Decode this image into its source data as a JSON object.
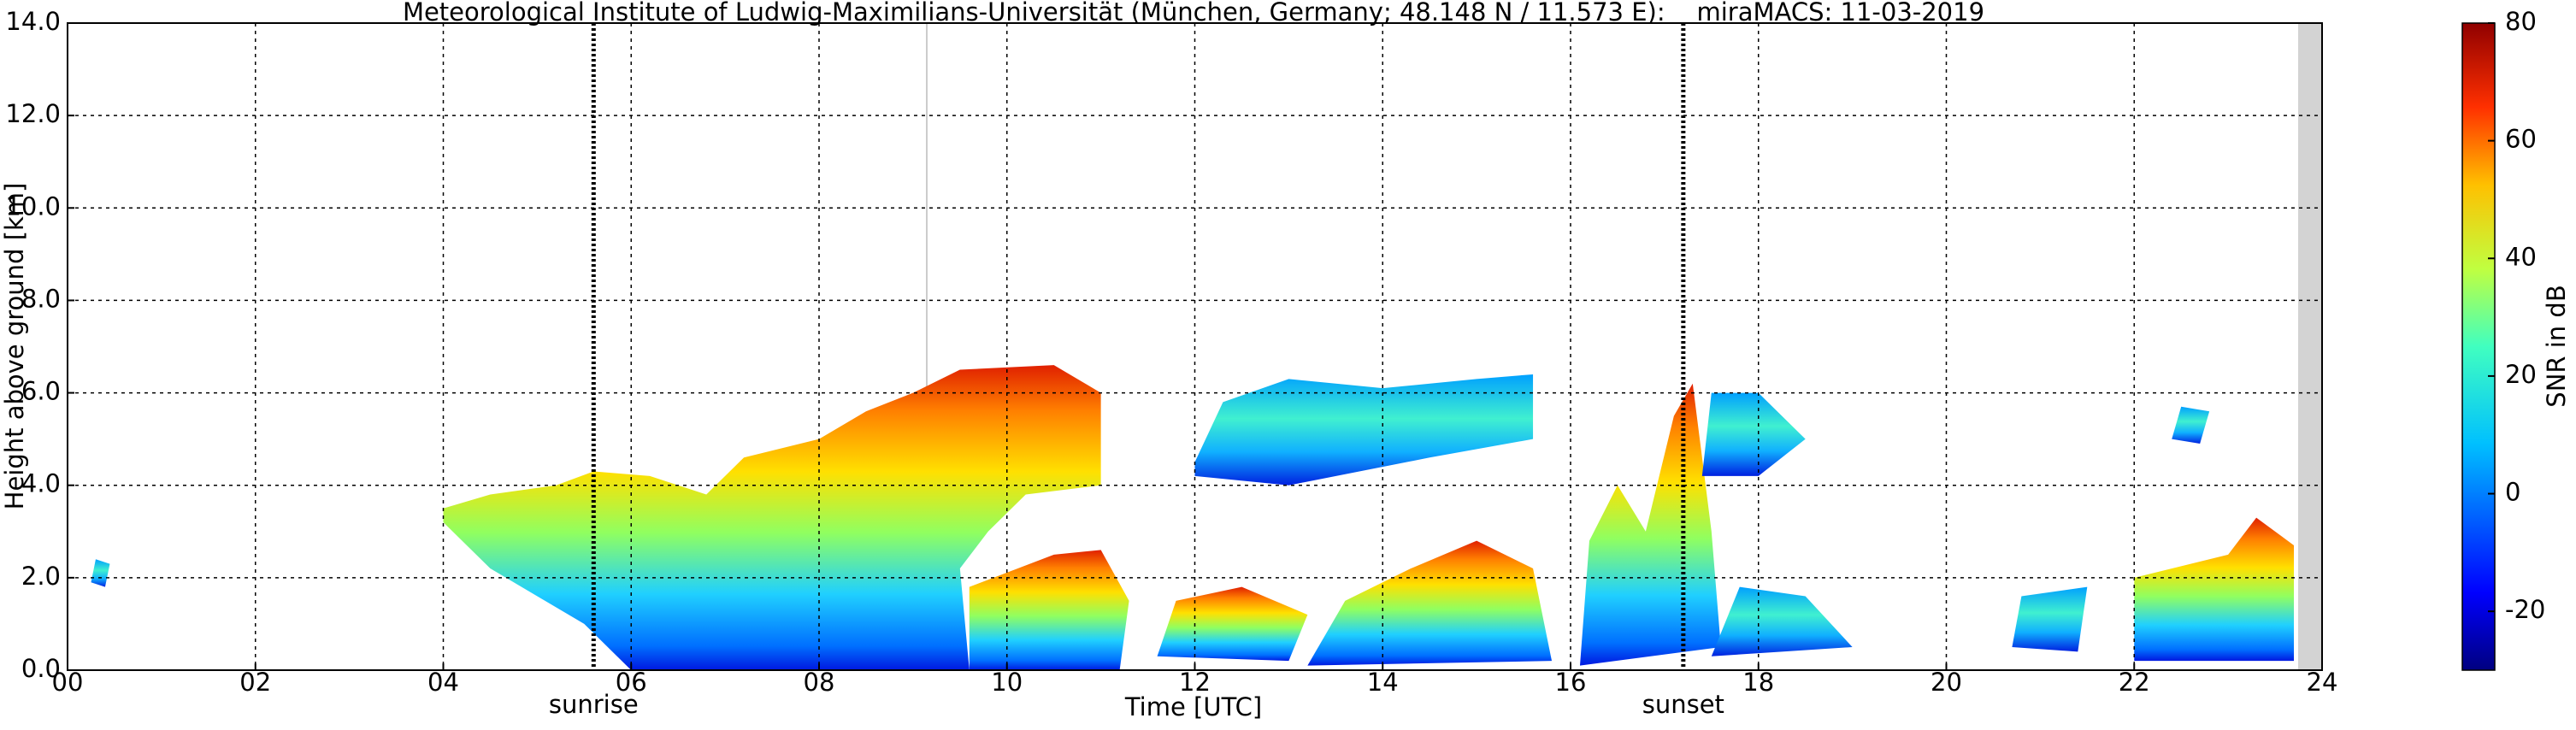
{
  "chart_data": {
    "type": "heatmap",
    "title": "Meteorological Institute of Ludwig-Maximilians-Universität (München, Germany; 48.148 N / 11.573 E):    miraMACS: 11-03-2019",
    "x_label": "Time [UTC]",
    "y_label": "Height above ground [km]",
    "xlim": [
      0,
      24
    ],
    "ylim": [
      0,
      14
    ],
    "xticks": [
      {
        "value": 0,
        "label": "00"
      },
      {
        "value": 2,
        "label": "02"
      },
      {
        "value": 4,
        "label": "04"
      },
      {
        "value": 6,
        "label": "06"
      },
      {
        "value": 8,
        "label": "08"
      },
      {
        "value": 10,
        "label": "10"
      },
      {
        "value": 12,
        "label": "12"
      },
      {
        "value": 14,
        "label": "14"
      },
      {
        "value": 16,
        "label": "16"
      },
      {
        "value": 18,
        "label": "18"
      },
      {
        "value": 20,
        "label": "20"
      },
      {
        "value": 22,
        "label": "22"
      },
      {
        "value": 24,
        "label": "24"
      }
    ],
    "yticks": [
      {
        "value": 0,
        "label": "0.0"
      },
      {
        "value": 2,
        "label": "2.0"
      },
      {
        "value": 4,
        "label": "4.0"
      },
      {
        "value": 6,
        "label": "6.0"
      },
      {
        "value": 8,
        "label": "8.0"
      },
      {
        "value": 10,
        "label": "10.0"
      },
      {
        "value": 12,
        "label": "12.0"
      },
      {
        "value": 14,
        "label": "14.0"
      }
    ],
    "grid": true,
    "annotations": [
      {
        "text": "sunrise",
        "x": 5.6
      },
      {
        "text": "sunset",
        "x": 17.2
      }
    ],
    "colorbar": {
      "label": "SNR in dB",
      "lim": [
        -30,
        80
      ],
      "ticks": [
        -20,
        0,
        20,
        40,
        60,
        80
      ]
    }
  }
}
